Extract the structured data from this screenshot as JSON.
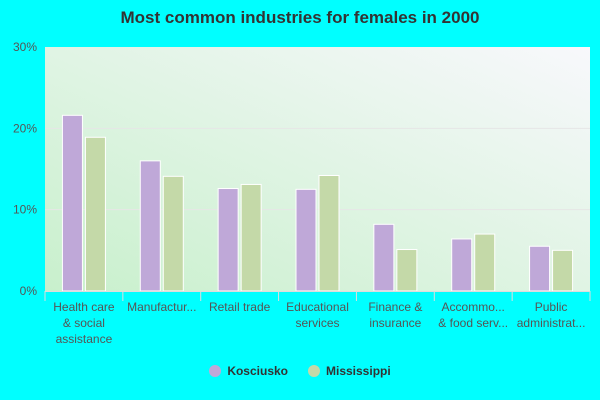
{
  "chart_data": {
    "type": "bar",
    "title": "Most common industries for females in 2000",
    "categories": [
      [
        "Health care",
        "& social",
        "assistance"
      ],
      [
        "Manufactur..."
      ],
      [
        "Retail trade"
      ],
      [
        "Educational",
        "services"
      ],
      [
        "Finance &",
        "insurance"
      ],
      [
        "Accommo...",
        "& food serv..."
      ],
      [
        "Public",
        "administrat..."
      ]
    ],
    "series": [
      {
        "name": "Kosciusko",
        "color": "#bfa8d8",
        "values": [
          21.6,
          16.0,
          12.6,
          12.5,
          8.2,
          6.4,
          5.5
        ]
      },
      {
        "name": "Mississippi",
        "color": "#c4d9a8",
        "values": [
          18.9,
          14.1,
          13.1,
          14.2,
          5.1,
          7.0,
          5.0
        ]
      }
    ],
    "yticks": [
      "0%",
      "10%",
      "20%",
      "30%"
    ],
    "ylim": [
      0,
      30
    ],
    "xlabel": "",
    "ylabel": "",
    "grid": true,
    "legend": "bottom"
  }
}
